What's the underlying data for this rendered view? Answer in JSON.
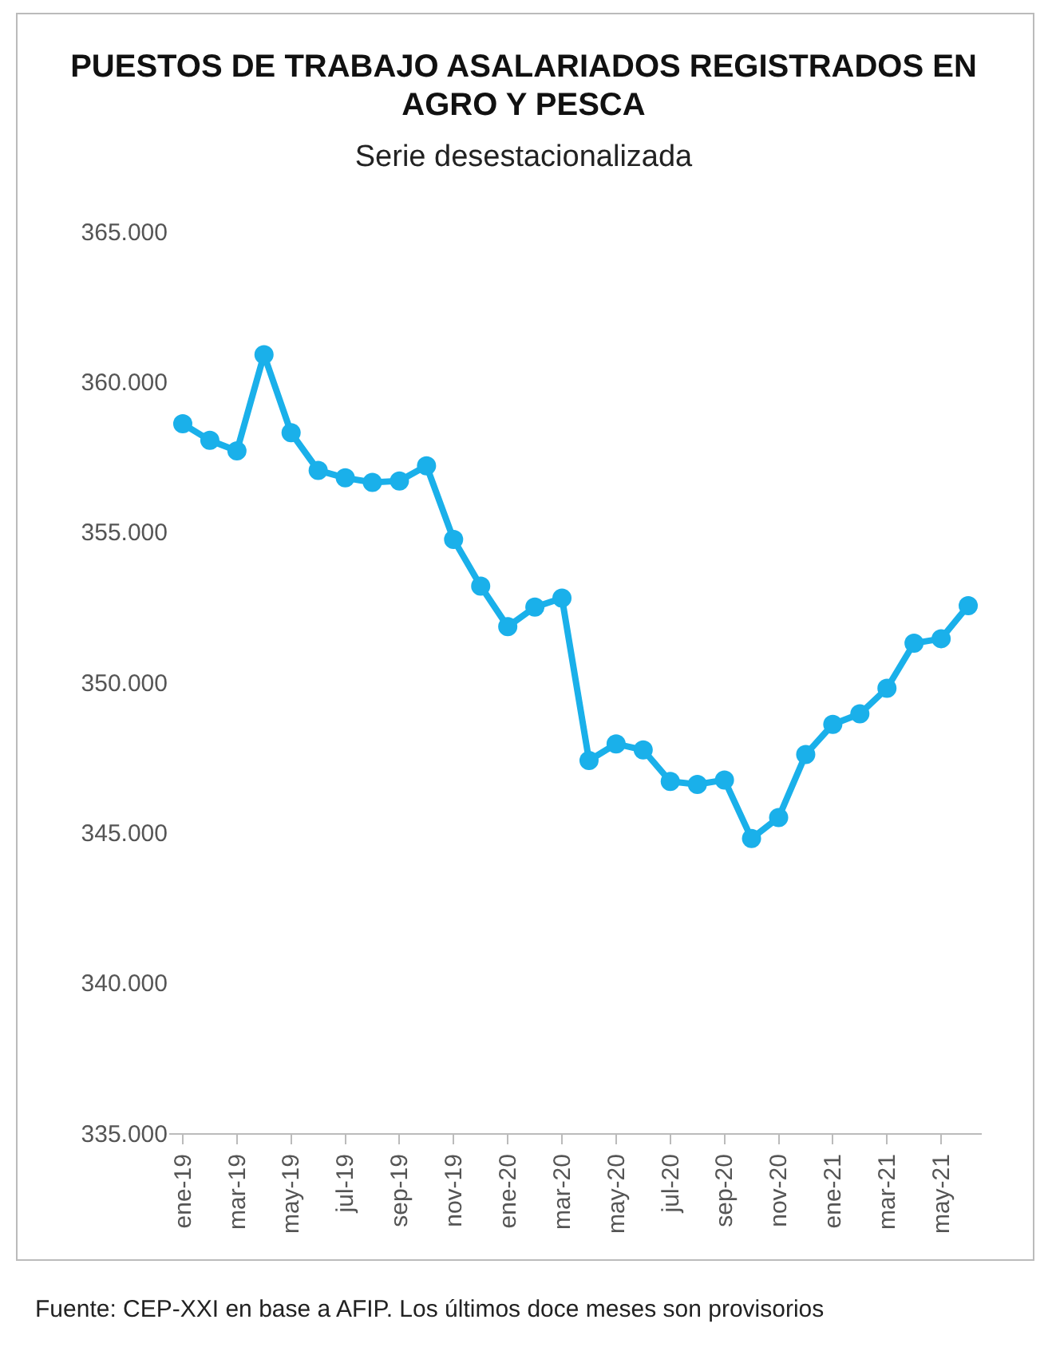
{
  "chart_data": {
    "type": "line",
    "title": "PUESTOS DE TRABAJO ASALARIADOS REGISTRADOS EN AGRO Y PESCA",
    "subtitle": "Serie desestacionalizada",
    "annotations": [
      "Fuente: CEP-XXI en base a AFIP. Los últimos doce meses son provisorios"
    ],
    "categories": [
      "ene-19",
      null,
      "mar-19",
      null,
      "may-19",
      null,
      "jul-19",
      null,
      "sep-19",
      null,
      "nov-19",
      null,
      "ene-20",
      null,
      "mar-20",
      null,
      "may-20",
      null,
      "jul-20",
      null,
      "sep-20",
      null,
      "nov-20",
      null,
      "ene-21",
      null,
      "mar-21",
      null,
      "may-21",
      null
    ],
    "series": [
      {
        "color": "#1ab0ea",
        "values": [
          358600,
          358050,
          357700,
          360900,
          358300,
          357050,
          356800,
          356650,
          356700,
          357200,
          354750,
          353200,
          351850,
          352500,
          352800,
          347400,
          347950,
          347750,
          346700,
          346600,
          346750,
          344800,
          345500,
          347600,
          348600,
          348950,
          349800,
          351300,
          351450,
          352550
        ]
      }
    ],
    "ylim": [
      335000,
      365000
    ],
    "yticks": [
      {
        "value": 335000,
        "label": "335.000"
      },
      {
        "value": 340000,
        "label": "340.000"
      },
      {
        "value": 345000,
        "label": "345.000"
      },
      {
        "value": 350000,
        "label": "350.000"
      },
      {
        "value": 355000,
        "label": "355.000"
      },
      {
        "value": 360000,
        "label": "360.000"
      },
      {
        "value": 365000,
        "label": "365.000"
      }
    ],
    "grid": false,
    "legend": false,
    "marker": "circle",
    "line_style": "solid"
  }
}
